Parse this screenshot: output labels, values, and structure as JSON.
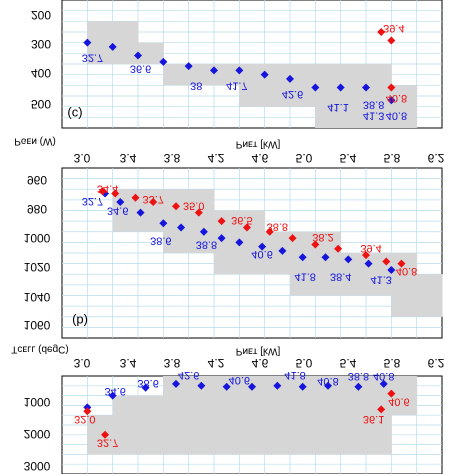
{
  "colors": {
    "blue_series": "#1515dd",
    "red_series": "#ee1111",
    "band": "#d6d6d6",
    "grid": "#b9dcee"
  },
  "chart_data": [
    {
      "type": "scatter",
      "tag": "(c)",
      "top_ylabel": "",
      "ylabel": "Pɢɦ (W)",
      "ylabel_display": "Pɢᴇɴ (W)",
      "y_ticks": [
        "200",
        "300",
        "400",
        "500"
      ],
      "x_ticks": [],
      "xlabel": "",
      "band_columns": [
        [
          1,
          1,
          3
        ],
        [
          2,
          1,
          3
        ],
        [
          3,
          2,
          3
        ],
        [
          4,
          3,
          4
        ],
        [
          5,
          3,
          4
        ],
        [
          6,
          3,
          4
        ],
        [
          7,
          3,
          5
        ],
        [
          8,
          3,
          5
        ],
        [
          9,
          3,
          5
        ],
        [
          10,
          3,
          6
        ],
        [
          11,
          3,
          6
        ],
        [
          12,
          3,
          6
        ],
        [
          13,
          4,
          6
        ]
      ],
      "series": [
        {
          "color": "blue",
          "points": [
            [
              1,
              2
            ],
            [
              2,
              2.2
            ],
            [
              3,
              2.6
            ],
            [
              4,
              2.9
            ],
            [
              5,
              3.1
            ],
            [
              6,
              3.3
            ],
            [
              7,
              3.3
            ],
            [
              8,
              3.5
            ],
            [
              9,
              3.7
            ],
            [
              10,
              4.1
            ],
            [
              11,
              4.1
            ],
            [
              12,
              4.1
            ],
            [
              13,
              4.7
            ]
          ]
        },
        {
          "color": "red",
          "points": [
            [
              12.6,
              1.5
            ],
            [
              13,
              1.9
            ],
            [
              13,
              4.1
            ]
          ]
        }
      ],
      "labels": [
        {
          "text": "32.7",
          "x": 1.2,
          "y": 2.7,
          "color": "blue"
        },
        {
          "text": "36.6",
          "x": 3.1,
          "y": 3.2,
          "color": "blue"
        },
        {
          "text": "38",
          "x": 5.3,
          "y": 4.0,
          "color": "blue"
        },
        {
          "text": "41.7",
          "x": 6.9,
          "y": 4.0,
          "color": "blue"
        },
        {
          "text": "42.6",
          "x": 9.1,
          "y": 4.4,
          "color": "blue"
        },
        {
          "text": "41.1",
          "x": 10.9,
          "y": 5.0,
          "color": "blue"
        },
        {
          "text": "38.8",
          "x": 12.3,
          "y": 4.9,
          "color": "blue"
        },
        {
          "text": "41.3",
          "x": 12.3,
          "y": 5.4,
          "color": "blue"
        },
        {
          "text": "40.8",
          "x": 13.2,
          "y": 5.4,
          "color": "blue"
        },
        {
          "text": "39.4",
          "x": 13.1,
          "y": 1.3,
          "color": "red"
        },
        {
          "text": "40.8",
          "x": 13.2,
          "y": 4.6,
          "color": "red"
        }
      ]
    },
    {
      "type": "scatter",
      "tag": "(b)",
      "top_xlabel": "Pɴᴇᴛ [kW]",
      "x_ticks": [
        "3.0",
        "3.4",
        "3.8",
        "4.2",
        "4.6",
        "5.0",
        "5.4",
        "5.8",
        "6.2"
      ],
      "ylabel": "Tᴄᴇʟʟ (degC)",
      "y_ticks": [
        "960",
        "980",
        "1000",
        "1020",
        "1040",
        "1060"
      ],
      "band_columns": [
        [
          2,
          1,
          3
        ],
        [
          3,
          1,
          3
        ],
        [
          4,
          1,
          4
        ],
        [
          5,
          1,
          4
        ],
        [
          6,
          2,
          5
        ],
        [
          7,
          2,
          5
        ],
        [
          8,
          3,
          5
        ],
        [
          9,
          3,
          6
        ],
        [
          10,
          3,
          6
        ],
        [
          11,
          4,
          6
        ],
        [
          12,
          4,
          6
        ],
        [
          13,
          4,
          7
        ],
        [
          14,
          5,
          7
        ]
      ],
      "series": [
        {
          "color": "blue",
          "points": [
            [
              1.7,
              1.2
            ],
            [
              2.3,
              1.6
            ],
            [
              3.1,
              2.1
            ],
            [
              4.0,
              2.6
            ],
            [
              4.7,
              2.8
            ],
            [
              5.6,
              3.0
            ],
            [
              6.3,
              3.3
            ],
            [
              7.0,
              3.5
            ],
            [
              7.9,
              3.7
            ],
            [
              8.7,
              3.9
            ],
            [
              9.5,
              4.2
            ],
            [
              10.4,
              4.2
            ],
            [
              11.3,
              4.3
            ],
            [
              12.1,
              4.5
            ],
            [
              13.0,
              4.8
            ]
          ]
        },
        {
          "color": "red",
          "points": [
            [
              1.6,
              1.1
            ],
            [
              2.1,
              1.2
            ],
            [
              2.9,
              1.4
            ],
            [
              3.6,
              1.6
            ],
            [
              4.5,
              1.8
            ],
            [
              5.4,
              2.1
            ],
            [
              6.3,
              2.5
            ],
            [
              7.3,
              2.8
            ],
            [
              8.2,
              3.0
            ],
            [
              9.1,
              3.3
            ],
            [
              10.0,
              3.6
            ],
            [
              10.9,
              3.8
            ],
            [
              12.0,
              4.1
            ],
            [
              12.8,
              4.4
            ],
            [
              13.4,
              4.5
            ]
          ]
        }
      ],
      "labels": [
        {
          "text": "32.7",
          "x": 1.2,
          "y": 1.55,
          "color": "blue"
        },
        {
          "text": "34.4",
          "x": 1.8,
          "y": 0.95,
          "color": "red"
        },
        {
          "text": "34.6",
          "x": 2.2,
          "y": 2.0,
          "color": "blue"
        },
        {
          "text": "33.7",
          "x": 3.6,
          "y": 1.45,
          "color": "red"
        },
        {
          "text": "35.0",
          "x": 5.2,
          "y": 1.75,
          "color": "red"
        },
        {
          "text": "38.6",
          "x": 3.9,
          "y": 3.4,
          "color": "blue"
        },
        {
          "text": "38.8",
          "x": 5.7,
          "y": 3.6,
          "color": "blue"
        },
        {
          "text": "36.5",
          "x": 7.1,
          "y": 2.45,
          "color": "red"
        },
        {
          "text": "38.8",
          "x": 8.5,
          "y": 2.75,
          "color": "red"
        },
        {
          "text": "40.6",
          "x": 7.9,
          "y": 4.05,
          "color": "blue"
        },
        {
          "text": "38.2",
          "x": 10.3,
          "y": 3.25,
          "color": "red"
        },
        {
          "text": "39.4",
          "x": 12.2,
          "y": 3.75,
          "color": "red"
        },
        {
          "text": "41.8",
          "x": 9.6,
          "y": 5.1,
          "color": "blue"
        },
        {
          "text": "38.4",
          "x": 11.0,
          "y": 5.1,
          "color": "blue"
        },
        {
          "text": "41.3",
          "x": 12.6,
          "y": 5.25,
          "color": "blue"
        },
        {
          "text": "40.8",
          "x": 13.6,
          "y": 4.85,
          "color": "red"
        }
      ]
    },
    {
      "type": "scatter",
      "tag": "(a)",
      "top_xlabel": "Pɴᴇᴛ [kW]",
      "x_ticks": [
        "3.0",
        "3.4",
        "3.8",
        "4.2",
        "4.6",
        "5.0",
        "5.4",
        "5.8",
        "6.2"
      ],
      "ylabel": "",
      "y_ticks": [
        "1000",
        "2000",
        "3000"
      ],
      "band_columns": [
        [
          1,
          2,
          4
        ],
        [
          2,
          1,
          4
        ],
        [
          3,
          1,
          4
        ],
        [
          4,
          0,
          4
        ],
        [
          5,
          0,
          4
        ],
        [
          6,
          0,
          4
        ],
        [
          7,
          0,
          4
        ],
        [
          8,
          0,
          4
        ],
        [
          9,
          0,
          4
        ],
        [
          10,
          0,
          4
        ],
        [
          11,
          0,
          4
        ],
        [
          12,
          0,
          4
        ],
        [
          13,
          0,
          2
        ]
      ],
      "series": [
        {
          "color": "blue",
          "points": [
            [
              1.0,
              1.6
            ],
            [
              2.0,
              1.0
            ],
            [
              3.3,
              0.6
            ],
            [
              4.5,
              0.4
            ],
            [
              5.5,
              0.5
            ],
            [
              6.5,
              0.55
            ],
            [
              7.5,
              0.55
            ],
            [
              8.5,
              0.5
            ],
            [
              9.5,
              0.55
            ],
            [
              10.5,
              0.5
            ],
            [
              11.7,
              0.55
            ],
            [
              12.7,
              0.4
            ]
          ]
        },
        {
          "color": "red",
          "points": [
            [
              1.0,
              1.8
            ],
            [
              1.7,
              3.0
            ],
            [
              12.6,
              1.7
            ],
            [
              13.0,
              0.9
            ]
          ]
        }
      ],
      "labels": [
        {
          "text": "34.6",
          "x": 2.1,
          "y": 0.75,
          "color": "blue"
        },
        {
          "text": "38.6",
          "x": 3.4,
          "y": 0.35,
          "color": "blue"
        },
        {
          "text": "42.6",
          "x": 5.0,
          "y": -0.05,
          "color": "blue"
        },
        {
          "text": "40.6",
          "x": 7.0,
          "y": 0.2,
          "color": "blue"
        },
        {
          "text": "41.8",
          "x": 9.2,
          "y": -0.05,
          "color": "blue"
        },
        {
          "text": "40.8",
          "x": 10.5,
          "y": 0.25,
          "color": "blue"
        },
        {
          "text": "38.8",
          "x": 11.7,
          "y": 0.0,
          "color": "blue"
        },
        {
          "text": "40.8",
          "x": 12.7,
          "y": 0.0,
          "color": "blue"
        },
        {
          "text": "32.0",
          "x": 0.9,
          "y": 2.2,
          "color": "red"
        },
        {
          "text": "32.7",
          "x": 1.8,
          "y": 3.4,
          "color": "red"
        },
        {
          "text": "36.1",
          "x": 12.3,
          "y": 2.2,
          "color": "red"
        },
        {
          "text": "40.6",
          "x": 13.3,
          "y": 1.3,
          "color": "red"
        }
      ]
    }
  ]
}
